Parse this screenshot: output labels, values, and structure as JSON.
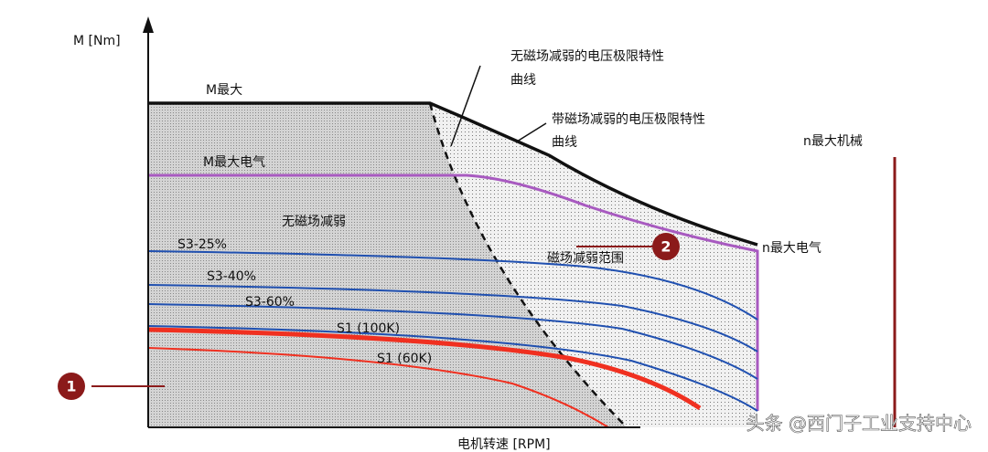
{
  "axes": {
    "y_label": "M [Nm]",
    "x_label": "电机转速 [RPM]"
  },
  "labels": {
    "m_max": "M最大",
    "m_max_electric": "M最大电气",
    "n_max_mechanical": "n最大机械",
    "n_max_electric": "n最大电气",
    "no_field_weakening": "无磁场减弱",
    "field_weakening_range": "磁场减弱范围"
  },
  "limit_curves": [
    {
      "lines": [
        "无磁场减弱的电压极限特性",
        "曲线"
      ]
    },
    {
      "lines": [
        "带磁场减弱的电压极限特性",
        "曲线"
      ]
    }
  ],
  "curves": [
    "S3-25%",
    "S3-40%",
    "S3-60%",
    "S1 (100K)",
    "S1 (60K)"
  ],
  "callouts": [
    "1",
    "2"
  ],
  "watermark": "头条 @西门子工业支持中心"
}
